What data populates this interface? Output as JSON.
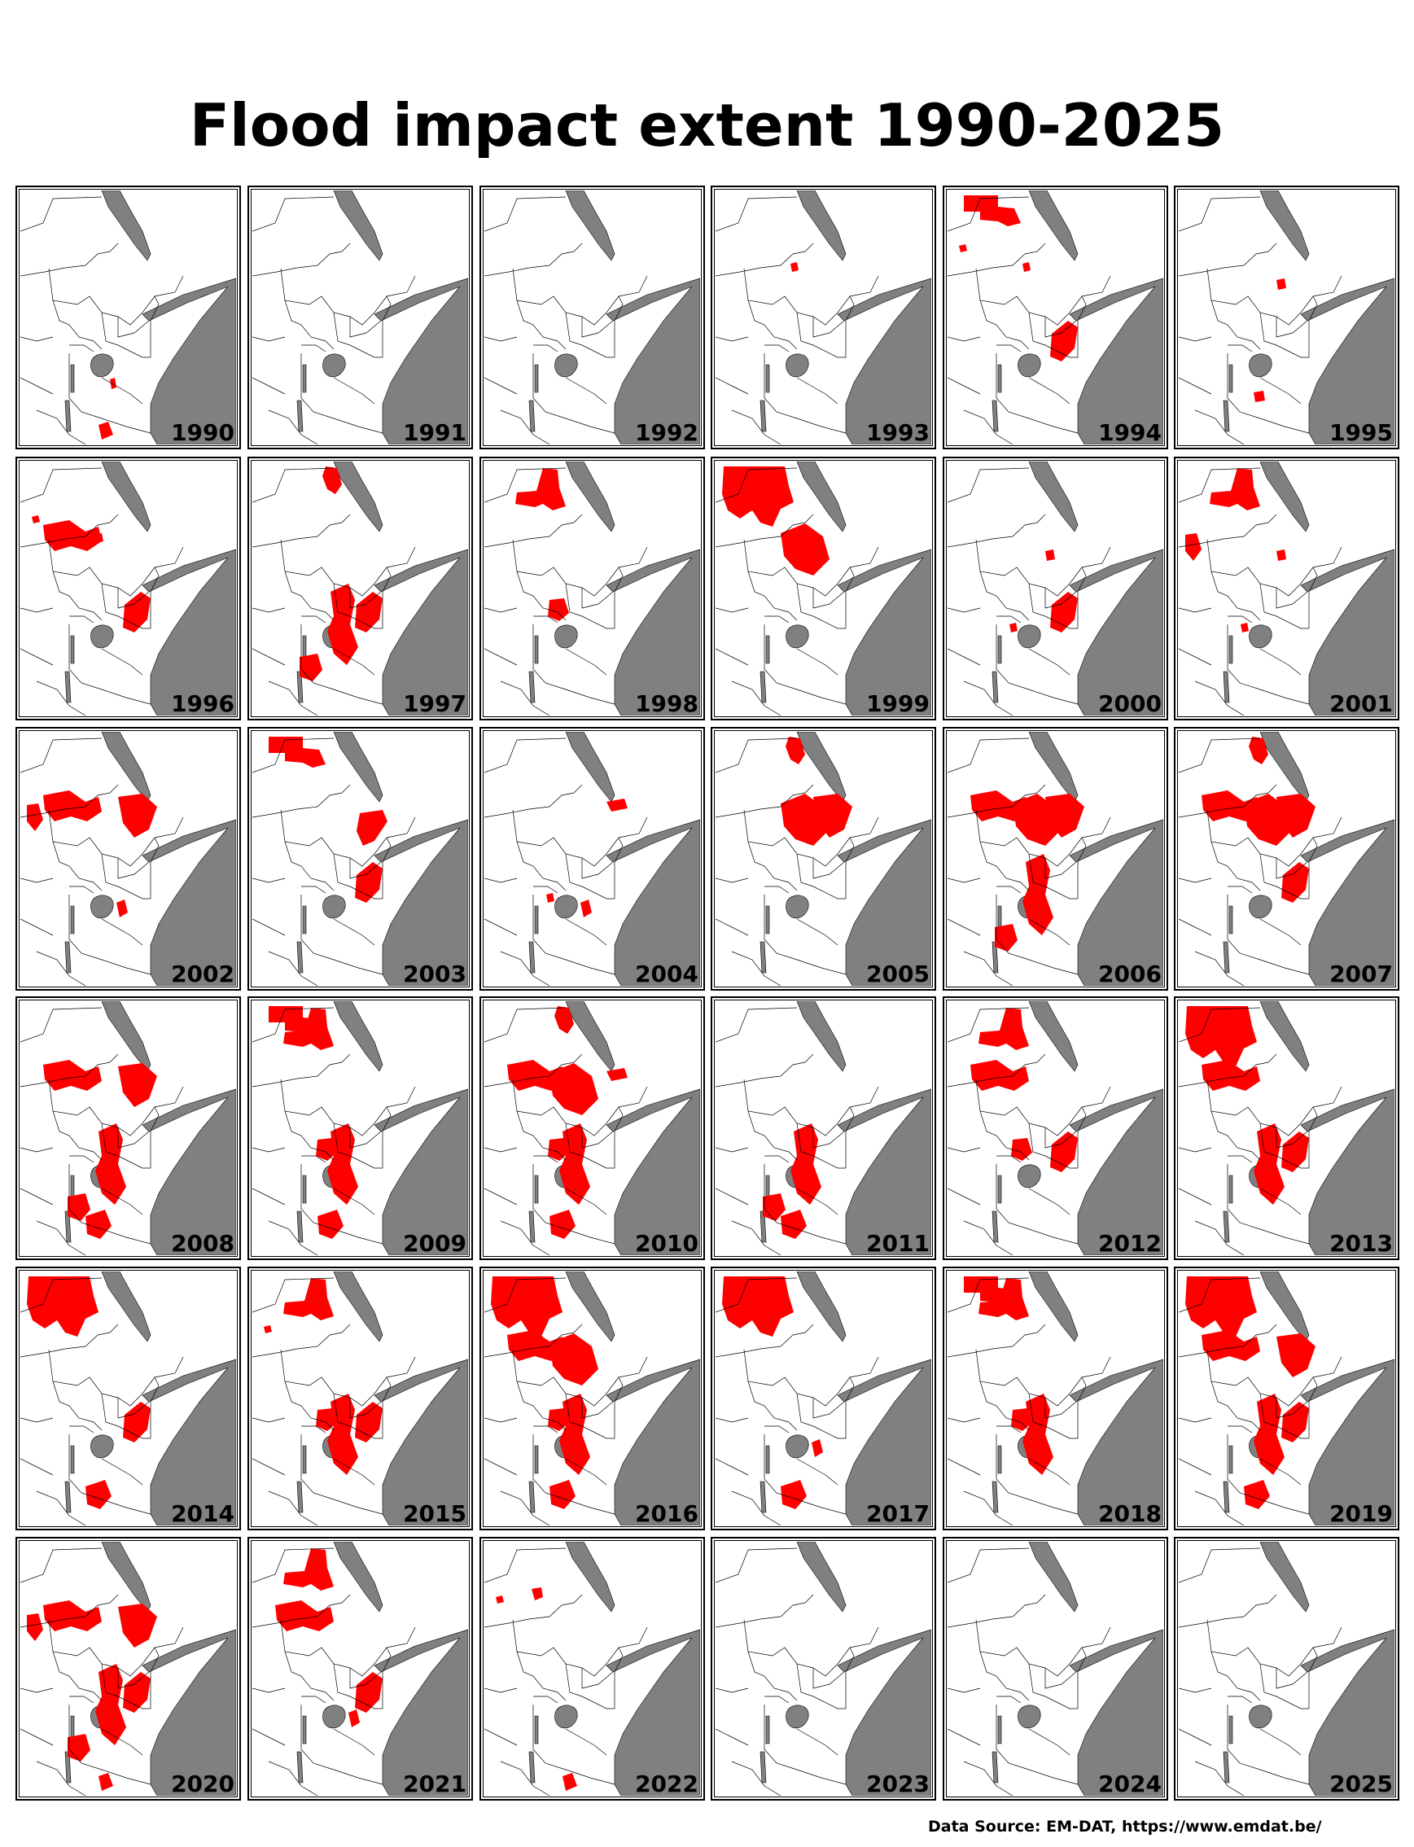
{
  "title": "Flood impact extent 1990-2025",
  "source": "Data Source: EM-DAT, https://www.emdat.be/",
  "colors": {
    "flood": "#ff0000",
    "sea": "#808080",
    "land": "#ffffff",
    "border": "#000000"
  },
  "panels": [
    {
      "year": "1990",
      "floods": [
        "eth-sw-small",
        "ug-ke-border",
        "tz-south-small"
      ]
    },
    {
      "year": "1991",
      "floods": []
    },
    {
      "year": "1992",
      "floods": []
    },
    {
      "year": "1993",
      "floods": [
        "eth-center-small",
        "ke-coast-small"
      ]
    },
    {
      "year": "1994",
      "floods": [
        "sudan-north",
        "sudan-west-small",
        "eth-center-small",
        "somalia-south",
        "ke-coast-small"
      ]
    },
    {
      "year": "1995",
      "floods": [
        "eth-east-small",
        "tz-center-small"
      ]
    },
    {
      "year": "1996",
      "floods": [
        "sudan-center",
        "sudan-west-small",
        "somalia-south",
        "eth-center-small"
      ]
    },
    {
      "year": "1997",
      "floods": [
        "eritrea",
        "kenya",
        "somalia-south",
        "tz-west"
      ]
    },
    {
      "year": "1998",
      "floods": [
        "sudan-north-mid",
        "uganda",
        "ke-coast-small"
      ]
    },
    {
      "year": "1999",
      "floods": [
        "sudan-north-large",
        "eth-center"
      ]
    },
    {
      "year": "2000",
      "floods": [
        "eth-east-small",
        "somalia-south",
        "uganda-small"
      ]
    },
    {
      "year": "2001",
      "floods": [
        "sudan-north-mid",
        "sudan-west",
        "eth-east-small",
        "uganda-small"
      ]
    },
    {
      "year": "2002",
      "floods": [
        "sudan-west",
        "sudan-center",
        "eth-east",
        "kenya-small"
      ]
    },
    {
      "year": "2003",
      "floods": [
        "sudan-north",
        "somalia-north",
        "somalia-south"
      ]
    },
    {
      "year": "2004",
      "floods": [
        "somaliland",
        "kenya-small",
        "uganda-small"
      ]
    },
    {
      "year": "2005",
      "floods": [
        "eritrea",
        "eth-center",
        "eth-east"
      ]
    },
    {
      "year": "2006",
      "floods": [
        "sudan-center",
        "eth-center",
        "eth-east",
        "kenya",
        "tz-west"
      ]
    },
    {
      "year": "2007",
      "floods": [
        "eritrea",
        "sudan-center",
        "eth-center",
        "eth-east",
        "somalia-south"
      ]
    },
    {
      "year": "2008",
      "floods": [
        "sudan-center",
        "eth-east",
        "kenya",
        "tz-west",
        "tz-center"
      ]
    },
    {
      "year": "2009",
      "floods": [
        "sudan-north",
        "sudan-north-mid",
        "kenya",
        "uganda",
        "tz-center"
      ]
    },
    {
      "year": "2010",
      "floods": [
        "eritrea",
        "sudan-center",
        "eth-center",
        "somaliland",
        "kenya",
        "uganda",
        "tz-center"
      ]
    },
    {
      "year": "2011",
      "floods": [
        "kenya",
        "tz-west",
        "tz-center"
      ]
    },
    {
      "year": "2012",
      "floods": [
        "sudan-center",
        "sudan-north-mid",
        "uganda",
        "somalia-south"
      ]
    },
    {
      "year": "2013",
      "floods": [
        "sudan-north-large",
        "sudan-center",
        "somalia-south",
        "kenya"
      ]
    },
    {
      "year": "2014",
      "floods": [
        "sudan-north-large",
        "somalia-south",
        "tz-center"
      ]
    },
    {
      "year": "2015",
      "floods": [
        "sudan-north-mid",
        "sudan-west-small",
        "kenya",
        "somalia-south",
        "uganda"
      ]
    },
    {
      "year": "2016",
      "floods": [
        "sudan-north-large",
        "sudan-center",
        "eth-center",
        "kenya",
        "uganda",
        "tz-center"
      ]
    },
    {
      "year": "2017",
      "floods": [
        "sudan-north-large",
        "kenya-small",
        "tz-center"
      ]
    },
    {
      "year": "2018",
      "floods": [
        "sudan-north",
        "sudan-north-mid",
        "kenya",
        "uganda"
      ]
    },
    {
      "year": "2019",
      "floods": [
        "sudan-north-large",
        "sudan-center",
        "eth-east",
        "somalia-south",
        "kenya",
        "tz-center"
      ]
    },
    {
      "year": "2020",
      "floods": [
        "sudan-west",
        "sudan-center",
        "eth-east",
        "somalia-south",
        "kenya",
        "tz-west",
        "tz-south-small"
      ]
    },
    {
      "year": "2021",
      "floods": [
        "sudan-north-mid",
        "sudan-center",
        "somalia-south",
        "kenya-small"
      ]
    },
    {
      "year": "2022",
      "floods": [
        "sudan-west-small",
        "sudan-center-small",
        "tz-south-small"
      ]
    },
    {
      "year": "2023",
      "floods": []
    },
    {
      "year": "2024",
      "floods": []
    },
    {
      "year": "2025",
      "floods": []
    }
  ]
}
